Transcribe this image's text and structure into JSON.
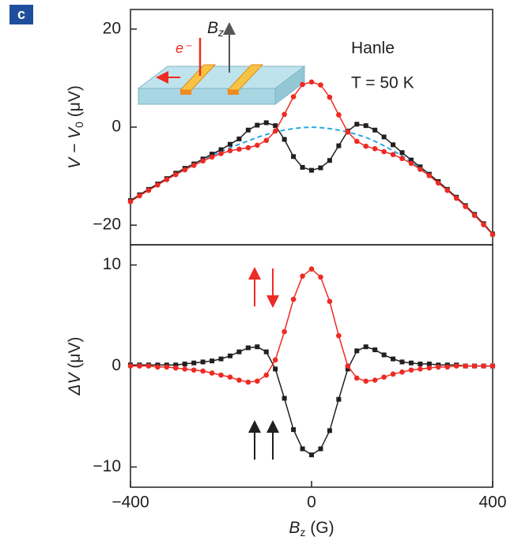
{
  "chart_data": [
    {
      "type": "line",
      "panel_label": "c",
      "annotations": [
        "Hanle",
        "T = 50 K"
      ],
      "inset": {
        "field_label": [
          "B",
          "z"
        ],
        "electron_label": "e⁻"
      },
      "ylabel": [
        "V − V",
        "0",
        " (μV)"
      ],
      "x": [
        -400,
        -380,
        -360,
        -340,
        -320,
        -300,
        -280,
        -260,
        -240,
        -220,
        -200,
        -180,
        -160,
        -140,
        -120,
        -100,
        -80,
        -60,
        -40,
        -20,
        0,
        20,
        40,
        60,
        80,
        100,
        120,
        140,
        160,
        180,
        200,
        220,
        240,
        260,
        280,
        300,
        320,
        340,
        360,
        380,
        400
      ],
      "xlim": [
        -400,
        400
      ],
      "ylim": [
        -24,
        24
      ],
      "yticks": [
        {
          "value": -20,
          "label": "−20"
        },
        0,
        20
      ],
      "series": [
        {
          "color": "#2aa8e0",
          "marker": "none",
          "dashed": true,
          "values": [
            -15,
            -13.8,
            -12.7,
            -11.6,
            -10.5,
            -9.5,
            -8.5,
            -7.6,
            -6.7,
            -5.8,
            -5.0,
            -4.2,
            -3.5,
            -2.8,
            -2.1,
            -1.5,
            -1.0,
            -0.6,
            -0.3,
            -0.1,
            0,
            -0.1,
            -0.3,
            -0.6,
            -1.0,
            -1.5,
            -2.1,
            -2.9,
            -3.8,
            -4.8,
            -5.9,
            -7.1,
            -8.4,
            -9.8,
            -11.3,
            -12.8,
            -14.4,
            -16.1,
            -17.9,
            -19.8,
            -21.8
          ]
        },
        {
          "color": "#231f20",
          "marker": "square",
          "dashed": false,
          "values": [
            -15,
            -13.8,
            -12.7,
            -11.6,
            -10.5,
            -9.4,
            -8.4,
            -7.5,
            -6.5,
            -5.5,
            -4.6,
            -3.5,
            -2.4,
            -0.6,
            0.4,
            0.9,
            0.3,
            -2.5,
            -6.0,
            -8.2,
            -8.8,
            -8.3,
            -6.8,
            -3.8,
            -0.8,
            0.6,
            0.3,
            -0.6,
            -2.0,
            -3.6,
            -5.2,
            -6.7,
            -8.1,
            -9.6,
            -11.1,
            -12.7,
            -14.3,
            -16.0,
            -17.8,
            -19.7,
            -21.8
          ]
        },
        {
          "color": "#ee2a24",
          "marker": "circle",
          "dashed": false,
          "values": [
            -15.2,
            -14,
            -12.9,
            -11.8,
            -10.7,
            -9.7,
            -8.7,
            -7.8,
            -6.9,
            -6.1,
            -5.4,
            -4.8,
            -4.5,
            -4.2,
            -3.7,
            -2.7,
            -0.8,
            2.6,
            6.2,
            8.7,
            9.2,
            8.6,
            6.1,
            2.5,
            -1.0,
            -2.9,
            -3.9,
            -4.4,
            -5.0,
            -5.6,
            -6.4,
            -7.4,
            -8.6,
            -9.9,
            -11.4,
            -12.9,
            -14.5,
            -16.2,
            -18.0,
            -19.9,
            -21.9
          ]
        }
      ]
    },
    {
      "type": "line",
      "ylabel": [
        "ΔV",
        " (μV)"
      ],
      "xlabel": [
        "B",
        "z",
        " (G)"
      ],
      "x": [
        -400,
        -380,
        -360,
        -340,
        -320,
        -300,
        -280,
        -260,
        -240,
        -220,
        -200,
        -180,
        -160,
        -140,
        -120,
        -100,
        -80,
        -60,
        -40,
        -20,
        0,
        20,
        40,
        60,
        80,
        100,
        120,
        140,
        160,
        180,
        200,
        220,
        240,
        260,
        280,
        300,
        320,
        340,
        360,
        380,
        400
      ],
      "xlim": [
        -400,
        400
      ],
      "xticks": [
        {
          "value": -400,
          "label": "−400"
        },
        0,
        400
      ],
      "ylim": [
        -12,
        12
      ],
      "yticks": [
        {
          "value": -10,
          "label": "−10"
        },
        0,
        10
      ],
      "series": [
        {
          "color": "#231f20",
          "marker": "square",
          "dashed": false,
          "values": [
            0.1,
            0.1,
            0.1,
            0.1,
            0.1,
            0.1,
            0.2,
            0.3,
            0.4,
            0.5,
            0.7,
            1.0,
            1.4,
            1.8,
            1.9,
            1.4,
            -0.3,
            -3.2,
            -6.3,
            -8.2,
            -8.8,
            -8.2,
            -6.4,
            -3.3,
            -0.3,
            1.5,
            1.9,
            1.6,
            1.1,
            0.7,
            0.4,
            0.3,
            0.2,
            0.2,
            0.1,
            0.1,
            0.1,
            0,
            0,
            0,
            0
          ]
        },
        {
          "color": "#ee2a24",
          "marker": "circle",
          "dashed": false,
          "values": [
            0,
            0,
            0,
            -0.1,
            -0.1,
            -0.2,
            -0.3,
            -0.4,
            -0.5,
            -0.7,
            -0.9,
            -1.1,
            -1.4,
            -1.6,
            -1.5,
            -0.9,
            0.6,
            3.4,
            6.6,
            8.9,
            9.6,
            8.8,
            6.4,
            3.0,
            0,
            -1.2,
            -1.5,
            -1.4,
            -1.1,
            -0.8,
            -0.6,
            -0.4,
            -0.3,
            -0.2,
            -0.1,
            -0.1,
            0,
            0,
            0,
            0,
            0
          ]
        }
      ]
    }
  ]
}
